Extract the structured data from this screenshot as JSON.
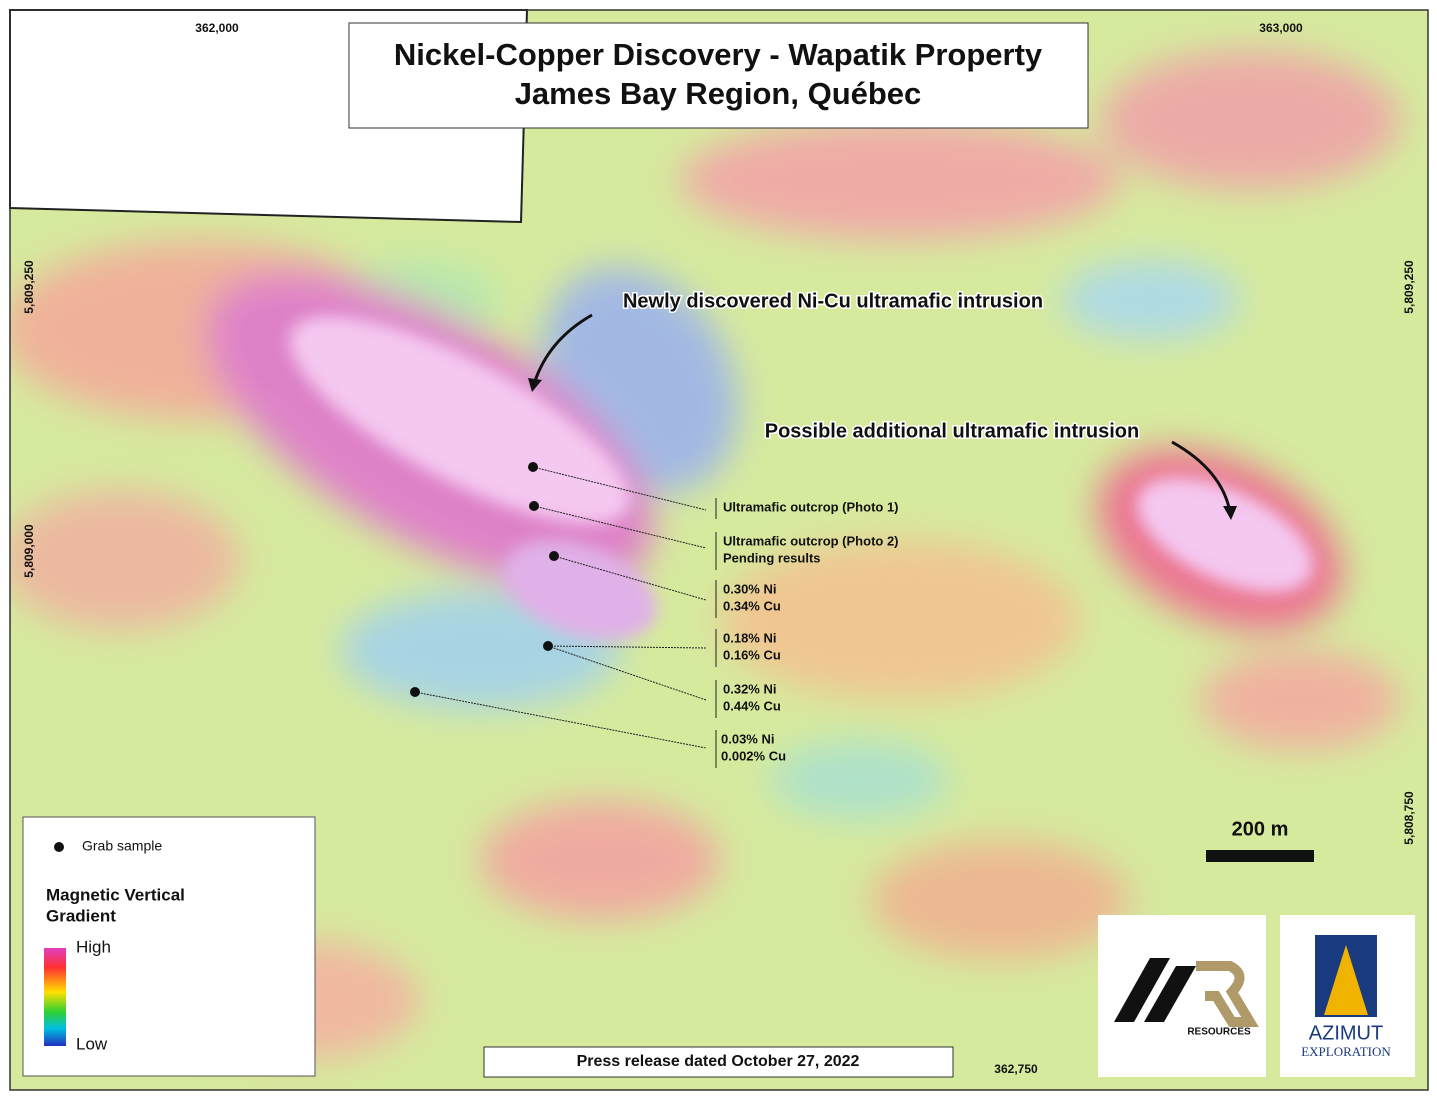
{
  "title": {
    "line1": "Nickel-Copper Discovery - Wapatik Property",
    "line2": "James Bay Region, Québec"
  },
  "coordinates": {
    "top": [
      "362,000",
      "363,000"
    ],
    "bottom": [
      "362,750"
    ],
    "left": [
      "5,809,250",
      "5,809,000"
    ],
    "right": [
      "5,809,250",
      "5,808,750"
    ]
  },
  "annotations": [
    "Newly discovered Ni-Cu ultramafic intrusion",
    "Possible additional ultramafic intrusion"
  ],
  "samples": [
    {
      "lines": [
        "Ultramafic outcrop (Photo 1)"
      ]
    },
    {
      "lines": [
        "Ultramafic outcrop (Photo 2)",
        "Pending results"
      ]
    },
    {
      "lines": [
        "0.30% Ni",
        "0.34% Cu"
      ]
    },
    {
      "lines": [
        "0.18% Ni",
        "0.16% Cu"
      ]
    },
    {
      "lines": [
        "0.32% Ni",
        "0.44% Cu"
      ]
    },
    {
      "lines": [
        "0.03% Ni",
        "0.002% Cu"
      ]
    }
  ],
  "legend": {
    "sample": "Grab sample",
    "title_lines": [
      "Magnetic Vertical",
      "Gradient"
    ],
    "high": "High",
    "low": "Low"
  },
  "scale_bar": "200 m",
  "logos": {
    "mr": "RESOURCES",
    "azimut": [
      "AZIMUT",
      "EXPLORATION"
    ]
  },
  "footer": "Press release dated October 27, 2022"
}
